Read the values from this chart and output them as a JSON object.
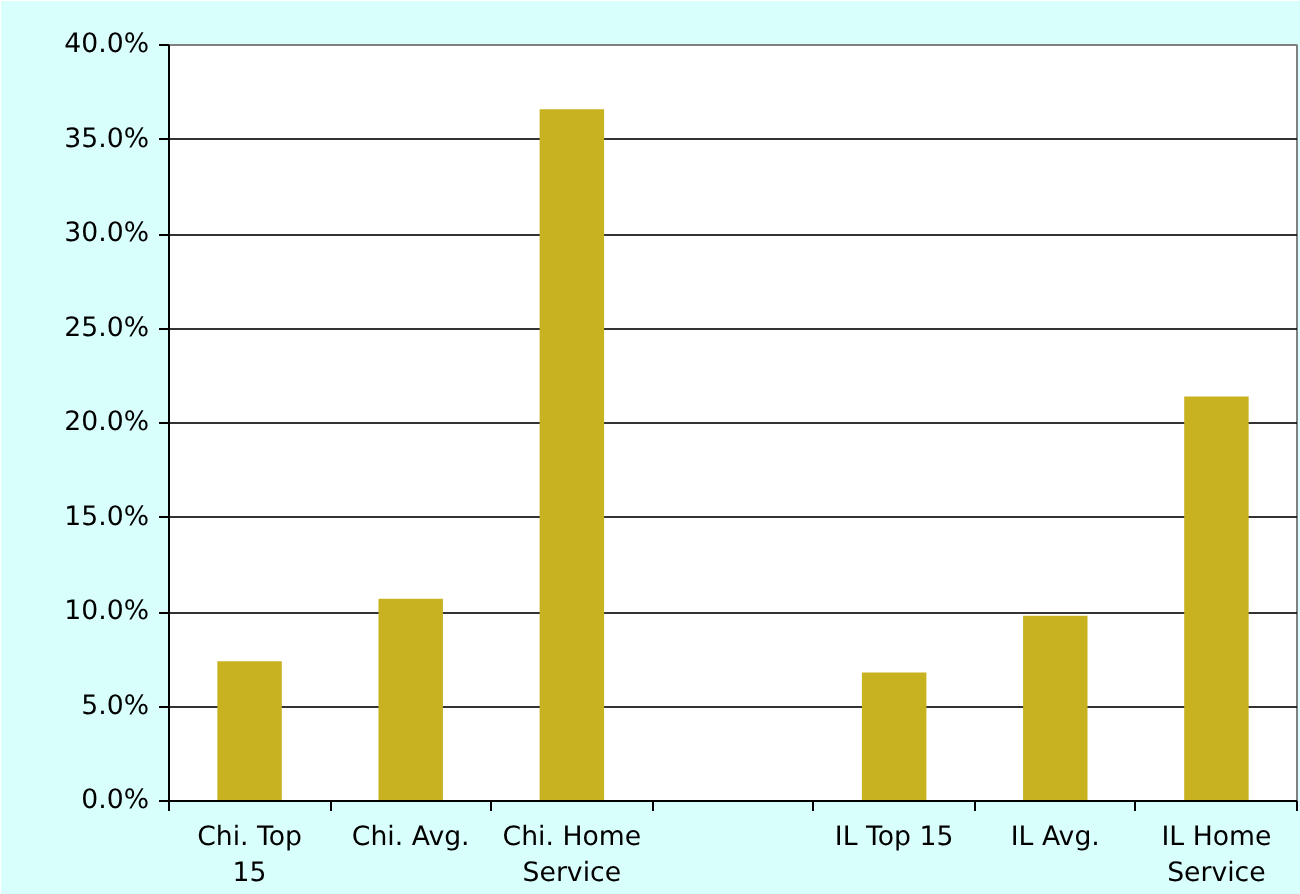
{
  "chart_data": {
    "type": "bar",
    "categories": [
      "Chi. Top 15",
      "Chi. Avg.",
      "Chi. Home Service",
      null,
      "IL Top 15",
      "IL Avg.",
      "IL Home Service"
    ],
    "values": [
      7.4,
      10.7,
      36.6,
      null,
      6.8,
      9.8,
      21.4
    ],
    "color": "#c9b220",
    "ylim": [
      0,
      40
    ],
    "yticks": [
      {
        "value": 0,
        "label": "0.0%"
      },
      {
        "value": 5,
        "label": "5.0%"
      },
      {
        "value": 10,
        "label": "10.0%"
      },
      {
        "value": 15,
        "label": "15.0%"
      },
      {
        "value": 20,
        "label": "20.0%"
      },
      {
        "value": 25,
        "label": "25.0%"
      },
      {
        "value": 30,
        "label": "30.0%"
      },
      {
        "value": 35,
        "label": "35.0%"
      },
      {
        "value": 40,
        "label": "40.0%"
      }
    ],
    "grid": "y"
  }
}
